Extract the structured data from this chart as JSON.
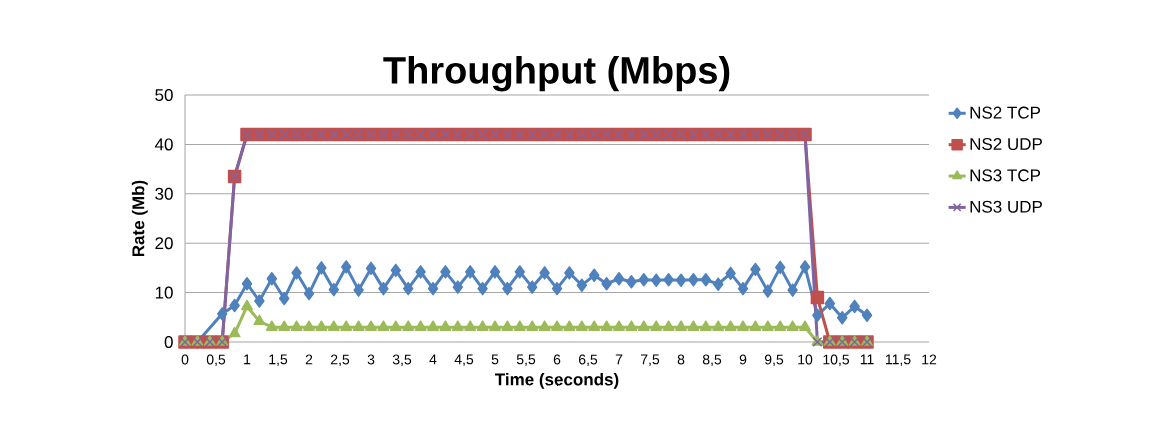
{
  "chart_data": {
    "type": "line",
    "title": "Throughput (Mbps)",
    "xlabel": "Time (seconds)",
    "ylabel": "Rate (Mb)",
    "x": [
      0,
      0.2,
      0.4,
      0.6,
      0.8,
      1.0,
      1.2,
      1.4,
      1.6,
      1.8,
      2.0,
      2.2,
      2.4,
      2.6,
      2.8,
      3.0,
      3.2,
      3.4,
      3.6,
      3.8,
      4.0,
      4.2,
      4.4,
      4.6,
      4.8,
      5.0,
      5.2,
      5.4,
      5.6,
      5.8,
      6.0,
      6.2,
      6.4,
      6.6,
      6.8,
      7.0,
      7.2,
      7.4,
      7.6,
      7.8,
      8.0,
      8.2,
      8.4,
      8.6,
      8.8,
      9.0,
      9.2,
      9.4,
      9.6,
      9.8,
      10.0,
      10.2,
      10.4,
      10.6,
      10.8,
      11.0
    ],
    "series": [
      {
        "name": "NS2 TCP",
        "color": "#4f81bd",
        "marker": "diamond",
        "values": [
          0,
          0,
          null,
          5.7,
          7.4,
          11.8,
          8.3,
          12.8,
          8.8,
          14.0,
          9.8,
          15.0,
          10.6,
          15.2,
          10.5,
          14.9,
          10.8,
          14.5,
          10.8,
          14.2,
          10.8,
          14.2,
          11.1,
          14.2,
          10.8,
          14.2,
          10.8,
          14.2,
          11.1,
          14.0,
          10.8,
          14.0,
          11.5,
          13.5,
          11.8,
          12.8,
          12.2,
          12.6,
          12.5,
          12.6,
          12.5,
          12.6,
          12.6,
          11.7,
          13.9,
          10.8,
          14.7,
          10.3,
          15.1,
          10.5,
          15.2,
          5.4,
          7.8,
          4.9,
          7.2,
          5.4
        ]
      },
      {
        "name": "NS2 UDP",
        "color": "#c0504d",
        "marker": "square",
        "values": [
          0,
          0,
          0,
          0,
          33.5,
          42,
          42,
          42,
          42,
          42,
          42,
          42,
          42,
          42,
          42,
          42,
          42,
          42,
          42,
          42,
          42,
          42,
          42,
          42,
          42,
          42,
          42,
          42,
          42,
          42,
          42,
          42,
          42,
          42,
          42,
          42,
          42,
          42,
          42,
          42,
          42,
          42,
          42,
          42,
          42,
          42,
          42,
          42,
          42,
          42,
          42,
          9,
          0,
          0,
          0,
          0
        ]
      },
      {
        "name": "NS3 TCP",
        "color": "#9bbb59",
        "marker": "triangle",
        "values": [
          0,
          0,
          0,
          0,
          1.7,
          7.2,
          4.2,
          3,
          3,
          3,
          3,
          3,
          3,
          3,
          3,
          3,
          3,
          3,
          3,
          3,
          3,
          3,
          3,
          3,
          3,
          3,
          3,
          3,
          3,
          3,
          3,
          3,
          3,
          3,
          3,
          3,
          3,
          3,
          3,
          3,
          3,
          3,
          3,
          3,
          3,
          3,
          3,
          3,
          3,
          3,
          3,
          0,
          0,
          0,
          0,
          0
        ]
      },
      {
        "name": "NS3 UDP",
        "color": "#8064a2",
        "marker": "cross",
        "values": [
          0,
          0,
          0,
          0,
          33.5,
          42,
          42,
          42,
          42,
          42,
          42,
          42,
          42,
          42,
          42,
          42,
          42,
          42,
          42,
          42,
          42,
          42,
          42,
          42,
          42,
          42,
          42,
          42,
          42,
          42,
          42,
          42,
          42,
          42,
          42,
          42,
          42,
          42,
          42,
          42,
          42,
          42,
          42,
          42,
          42,
          42,
          42,
          42,
          42,
          42,
          42,
          0,
          0,
          0,
          0,
          0
        ]
      }
    ],
    "xlim": [
      0,
      12
    ],
    "xticks": [
      0,
      {
        "value": 0.5,
        "label": "0,5"
      },
      1,
      {
        "value": 1.5,
        "label": "1,5"
      },
      2,
      {
        "value": 2.5,
        "label": "2,5"
      },
      3,
      {
        "value": 3.5,
        "label": "3,5"
      },
      4,
      {
        "value": 4.5,
        "label": "4,5"
      },
      5,
      {
        "value": 5.5,
        "label": "5,5"
      },
      6,
      {
        "value": 6.5,
        "label": "6,5"
      },
      7,
      {
        "value": 7.5,
        "label": "7,5"
      },
      8,
      {
        "value": 8.5,
        "label": "8,5"
      },
      9,
      {
        "value": 9.5,
        "label": "9,5"
      },
      10,
      {
        "value": 10.5,
        "label": "10,5"
      },
      11,
      {
        "value": 11.5,
        "label": "11,5"
      },
      12
    ],
    "ylim": [
      0,
      50
    ],
    "yticks": [
      0,
      10,
      20,
      30,
      40,
      50
    ],
    "grid": "y",
    "legend": "right"
  }
}
